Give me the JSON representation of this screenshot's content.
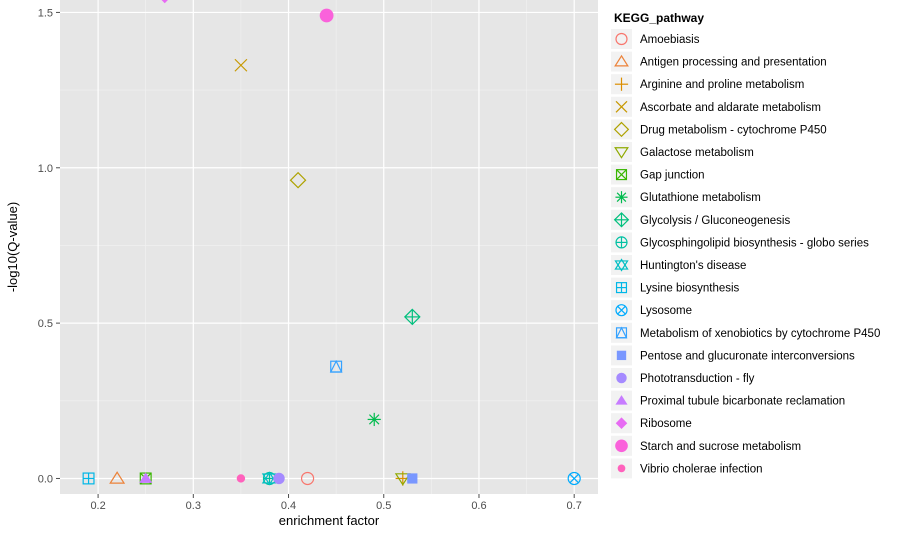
{
  "chart_data": {
    "type": "scatter",
    "xlabel": "enrichment factor",
    "ylabel": "-log10(Q-value)",
    "xlim": [
      0.16,
      0.725
    ],
    "ylim": [
      -0.05,
      1.54
    ],
    "xticks": [
      0.2,
      0.3,
      0.4,
      0.5,
      0.6,
      0.7
    ],
    "yticks": [
      0.0,
      0.5,
      1.0,
      1.5
    ],
    "xtick_labels": [
      "0.2",
      "0.3",
      "0.4",
      "0.5",
      "0.6",
      "0.7"
    ],
    "ytick_labels": [
      "0.0",
      "0.5",
      "1.0",
      "1.5"
    ],
    "grid": true,
    "legend_title": "KEGG_pathway",
    "legend_position": "right",
    "series": [
      {
        "name": "Amoebiasis",
        "color": "#F8766D",
        "shape": "circle-open",
        "points": [
          [
            0.42,
            0.0
          ]
        ]
      },
      {
        "name": "Antigen processing and presentation",
        "color": "#EC8239",
        "shape": "triangle-open",
        "points": [
          [
            0.22,
            0.0
          ]
        ]
      },
      {
        "name": "Arginine and proline metabolism",
        "color": "#DB8E00",
        "shape": "plus",
        "points": [
          [
            0.52,
            0.0
          ]
        ]
      },
      {
        "name": "Ascorbate and aldarate metabolism",
        "color": "#C79800",
        "shape": "cross",
        "points": [
          [
            0.35,
            1.33
          ]
        ]
      },
      {
        "name": "Drug metabolism - cytochrome P450",
        "color": "#AEA200",
        "shape": "diamond-open",
        "points": [
          [
            0.41,
            0.96
          ]
        ]
      },
      {
        "name": "Galactose metabolism",
        "color": "#8FAA00",
        "shape": "triangle-down-open",
        "points": [
          [
            0.52,
            0.0
          ]
        ]
      },
      {
        "name": "Gap junction",
        "color": "#39B600",
        "shape": "square-cross",
        "points": [
          [
            0.25,
            0.0
          ]
        ]
      },
      {
        "name": "Glutathione metabolism",
        "color": "#00BB4E",
        "shape": "star",
        "points": [
          [
            0.49,
            0.19
          ]
        ]
      },
      {
        "name": "Glycolysis / Gluconeogenesis",
        "color": "#00BF7D",
        "shape": "diamond-plus",
        "points": [
          [
            0.53,
            0.52
          ]
        ]
      },
      {
        "name": "Glycosphingolipid biosynthesis - globo series",
        "color": "#00C1A3",
        "shape": "circle-plus",
        "points": [
          [
            0.38,
            0.0
          ]
        ]
      },
      {
        "name": "Huntington's disease",
        "color": "#00BFC4",
        "shape": "triangles-up-down",
        "points": [
          [
            0.38,
            0.0
          ]
        ]
      },
      {
        "name": "Lysine biosynthesis",
        "color": "#00B7E7",
        "shape": "square-plus",
        "points": [
          [
            0.19,
            0.0
          ]
        ]
      },
      {
        "name": "Lysosome",
        "color": "#00ABFD",
        "shape": "circle-cross",
        "points": [
          [
            0.7,
            0.0
          ]
        ]
      },
      {
        "name": "Metabolism of xenobiotics by cytochrome P450",
        "color": "#35A2FF",
        "shape": "square-triangle",
        "points": [
          [
            0.45,
            0.36
          ]
        ]
      },
      {
        "name": "Pentose and glucuronate interconversions",
        "color": "#7997FF",
        "shape": "square-filled",
        "points": [
          [
            0.53,
            0.0
          ]
        ]
      },
      {
        "name": "Phototransduction - fly",
        "color": "#A58AFF",
        "shape": "circle-filled",
        "points": [
          [
            0.39,
            0.0
          ]
        ]
      },
      {
        "name": "Proximal tubule bicarbonate reclamation",
        "color": "#C77CFF",
        "shape": "triangle-filled",
        "points": [
          [
            0.25,
            0.0
          ]
        ]
      },
      {
        "name": "Ribosome",
        "color": "#E76BF3",
        "shape": "diamond-filled",
        "points": [
          [
            0.27,
            1.55
          ]
        ]
      },
      {
        "name": "Starch and sucrose metabolism",
        "color": "#FA62DB",
        "shape": "circle-filled-large",
        "points": [
          [
            0.44,
            1.49
          ]
        ]
      },
      {
        "name": "Vibrio cholerae infection",
        "color": "#FF62BC",
        "shape": "circle-filled-small",
        "points": [
          [
            0.35,
            0.0
          ]
        ]
      }
    ]
  }
}
